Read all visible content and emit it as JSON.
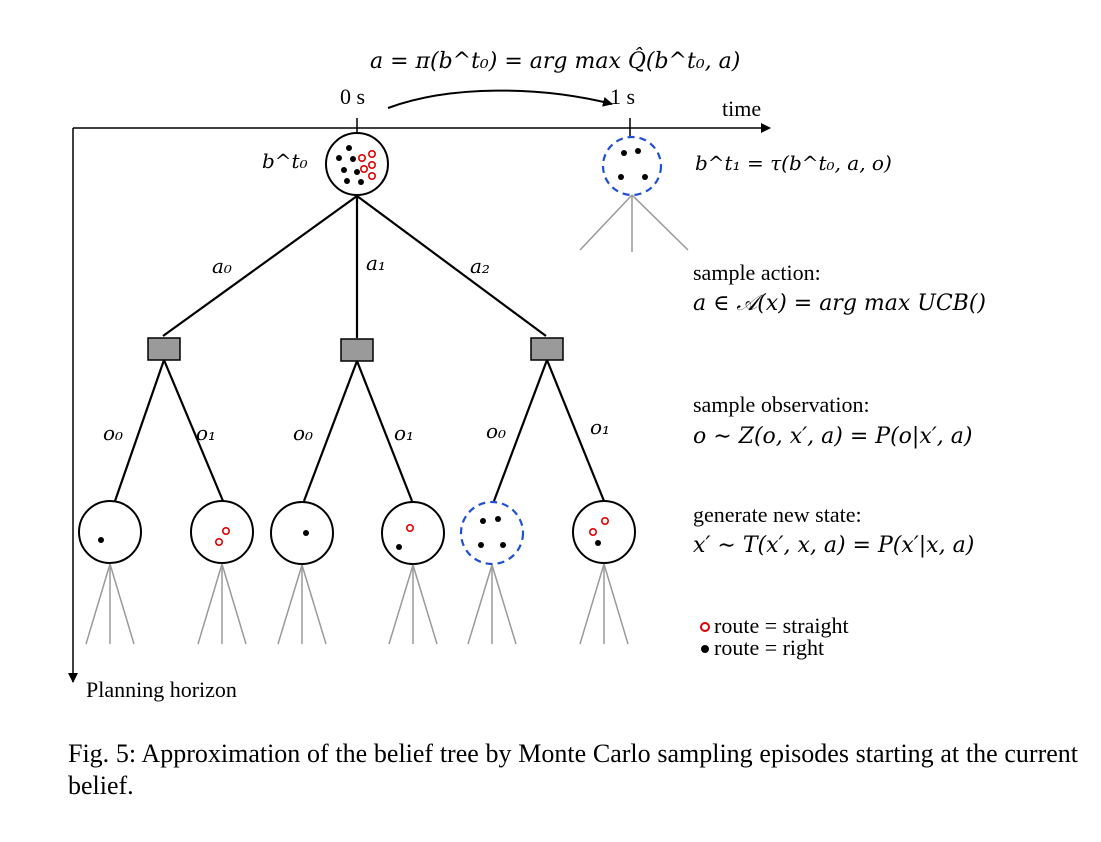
{
  "figure": {
    "top_formula": "a = π(b^t₀) = arg max Q̂(b^t₀, a)",
    "time_markers": {
      "t0": "0 s",
      "t1": "1 s"
    },
    "axis": {
      "time_label": "time",
      "horizon_label": "Planning horizon"
    },
    "root_belief_label": "b^t₀",
    "next_belief_label": "b^t₁ = τ(b^t₀, a, o)",
    "actions": [
      "a₀",
      "a₁",
      "a₂"
    ],
    "observations": [
      "o₀",
      "o₁",
      "o₀",
      "o₁",
      "o₀",
      "o₁"
    ],
    "annotations": [
      {
        "heading": "sample action:",
        "formula": "a ∈ 𝒜(x) = arg max UCB()"
      },
      {
        "heading": "sample observation:",
        "formula": "o ∼ Z(o, x′, a) = P(o|x′, a)"
      },
      {
        "heading": "generate new state:",
        "formula": "x′ ∼ T(x′, x, a) = P(x′|x, a)"
      }
    ],
    "legend": [
      {
        "symbol": "hollow-red-circle",
        "label": "route = straight",
        "color": "#e00000"
      },
      {
        "symbol": "filled-black-dot",
        "label": "route = right",
        "color": "#000000"
      }
    ],
    "colors": {
      "highlight_dashed": "#1f4fd6",
      "straight": "#e00000",
      "action_node": "#9a9a9a"
    }
  },
  "caption": "Fig. 5: Approximation of the belief tree by Monte Carlo sampling episodes starting at the current belief."
}
